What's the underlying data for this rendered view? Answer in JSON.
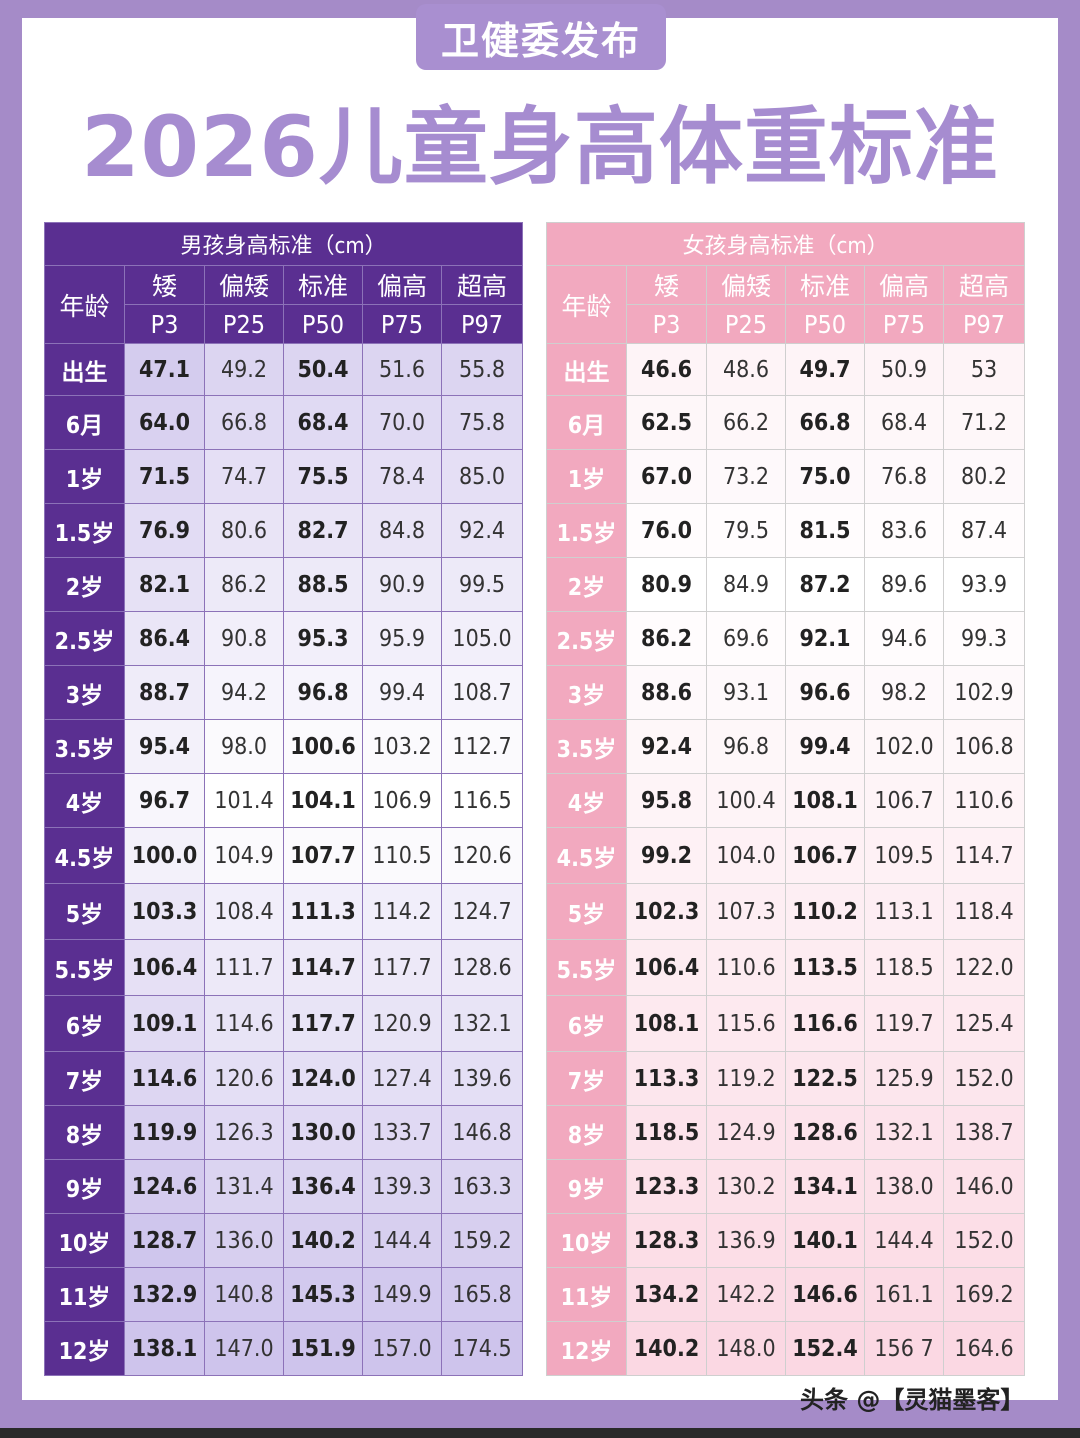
{
  "badge": "卫健委发布",
  "title": "2026儿童身高体重标准",
  "columns": {
    "age": "年龄",
    "levels": [
      "矮",
      "偏矮",
      "标准",
      "偏高",
      "超高"
    ],
    "percentiles": [
      "P3",
      "P25",
      "P50",
      "P75",
      "P97"
    ]
  },
  "boys": {
    "title": "男孩身高标准（cm）",
    "rows": [
      {
        "age": "出生",
        "v": [
          "47.1",
          "49.2",
          "50.4",
          "51.6",
          "55.8"
        ]
      },
      {
        "age": "6月",
        "v": [
          "64.0",
          "66.8",
          "68.4",
          "70.0",
          "75.8"
        ]
      },
      {
        "age": "1岁",
        "v": [
          "71.5",
          "74.7",
          "75.5",
          "78.4",
          "85.0"
        ]
      },
      {
        "age": "1.5岁",
        "v": [
          "76.9",
          "80.6",
          "82.7",
          "84.8",
          "92.4"
        ]
      },
      {
        "age": "2岁",
        "v": [
          "82.1",
          "86.2",
          "88.5",
          "90.9",
          "99.5"
        ]
      },
      {
        "age": "2.5岁",
        "v": [
          "86.4",
          "90.8",
          "95.3",
          "95.9",
          "105.0"
        ]
      },
      {
        "age": "3岁",
        "v": [
          "88.7",
          "94.2",
          "96.8",
          "99.4",
          "108.7"
        ]
      },
      {
        "age": "3.5岁",
        "v": [
          "95.4",
          "98.0",
          "100.6",
          "103.2",
          "112.7"
        ]
      },
      {
        "age": "4岁",
        "v": [
          "96.7",
          "101.4",
          "104.1",
          "106.9",
          "116.5"
        ]
      },
      {
        "age": "4.5岁",
        "v": [
          "100.0",
          "104.9",
          "107.7",
          "110.5",
          "120.6"
        ]
      },
      {
        "age": "5岁",
        "v": [
          "103.3",
          "108.4",
          "111.3",
          "114.2",
          "124.7"
        ]
      },
      {
        "age": "5.5岁",
        "v": [
          "106.4",
          "111.7",
          "114.7",
          "117.7",
          "128.6"
        ]
      },
      {
        "age": "6岁",
        "v": [
          "109.1",
          "114.6",
          "117.7",
          "120.9",
          "132.1"
        ]
      },
      {
        "age": "7岁",
        "v": [
          "114.6",
          "120.6",
          "124.0",
          "127.4",
          "139.6"
        ]
      },
      {
        "age": "8岁",
        "v": [
          "119.9",
          "126.3",
          "130.0",
          "133.7",
          "146.8"
        ]
      },
      {
        "age": "9岁",
        "v": [
          "124.6",
          "131.4",
          "136.4",
          "139.3",
          "163.3"
        ]
      },
      {
        "age": "10岁",
        "v": [
          "128.7",
          "136.0",
          "140.2",
          "144.4",
          "159.2"
        ]
      },
      {
        "age": "11岁",
        "v": [
          "132.9",
          "140.8",
          "145.3",
          "149.9",
          "165.8"
        ]
      },
      {
        "age": "12岁",
        "v": [
          "138.1",
          "147.0",
          "151.9",
          "157.0",
          "174.5"
        ]
      }
    ]
  },
  "girls": {
    "title": "女孩身高标准（cm）",
    "rows": [
      {
        "age": "出生",
        "v": [
          "46.6",
          "48.6",
          "49.7",
          "50.9",
          "53"
        ]
      },
      {
        "age": "6月",
        "v": [
          "62.5",
          "66.2",
          "66.8",
          "68.4",
          "71.2"
        ]
      },
      {
        "age": "1岁",
        "v": [
          "67.0",
          "73.2",
          "75.0",
          "76.8",
          "80.2"
        ]
      },
      {
        "age": "1.5岁",
        "v": [
          "76.0",
          "79.5",
          "81.5",
          "83.6",
          "87.4"
        ]
      },
      {
        "age": "2岁",
        "v": [
          "80.9",
          "84.9",
          "87.2",
          "89.6",
          "93.9"
        ]
      },
      {
        "age": "2.5岁",
        "v": [
          "86.2",
          "69.6",
          "92.1",
          "94.6",
          "99.3"
        ]
      },
      {
        "age": "3岁",
        "v": [
          "88.6",
          "93.1",
          "96.6",
          "98.2",
          "102.9"
        ]
      },
      {
        "age": "3.5岁",
        "v": [
          "92.4",
          "96.8",
          "99.4",
          "102.0",
          "106.8"
        ]
      },
      {
        "age": "4岁",
        "v": [
          "95.8",
          "100.4",
          "108.1",
          "106.7",
          "110.6"
        ]
      },
      {
        "age": "4.5岁",
        "v": [
          "99.2",
          "104.0",
          "106.7",
          "109.5",
          "114.7"
        ]
      },
      {
        "age": "5岁",
        "v": [
          "102.3",
          "107.3",
          "110.2",
          "113.1",
          "118.4"
        ]
      },
      {
        "age": "5.5岁",
        "v": [
          "106.4",
          "110.6",
          "113.5",
          "118.5",
          "122.0"
        ]
      },
      {
        "age": "6岁",
        "v": [
          "108.1",
          "115.6",
          "116.6",
          "119.7",
          "125.4"
        ]
      },
      {
        "age": "7岁",
        "v": [
          "113.3",
          "119.2",
          "122.5",
          "125.9",
          "152.0"
        ]
      },
      {
        "age": "8岁",
        "v": [
          "118.5",
          "124.9",
          "128.6",
          "132.1",
          "138.7"
        ]
      },
      {
        "age": "9岁",
        "v": [
          "123.3",
          "130.2",
          "134.1",
          "138.0",
          "146.0"
        ]
      },
      {
        "age": "10岁",
        "v": [
          "128.3",
          "136.9",
          "140.1",
          "144.4",
          "152.0"
        ]
      },
      {
        "age": "11岁",
        "v": [
          "134.2",
          "142.2",
          "146.6",
          "161.1",
          "169.2"
        ]
      },
      {
        "age": "12岁",
        "v": [
          "140.2",
          "148.0",
          "152.4",
          "156 7",
          "164.6"
        ]
      }
    ]
  },
  "watermark": "头条 @【灵猫墨客】",
  "colors": {
    "boy_header": "#5a2f91",
    "girl_header": "#f2a9bf",
    "title": "#a68cd0",
    "frame": "#a58bc8"
  }
}
